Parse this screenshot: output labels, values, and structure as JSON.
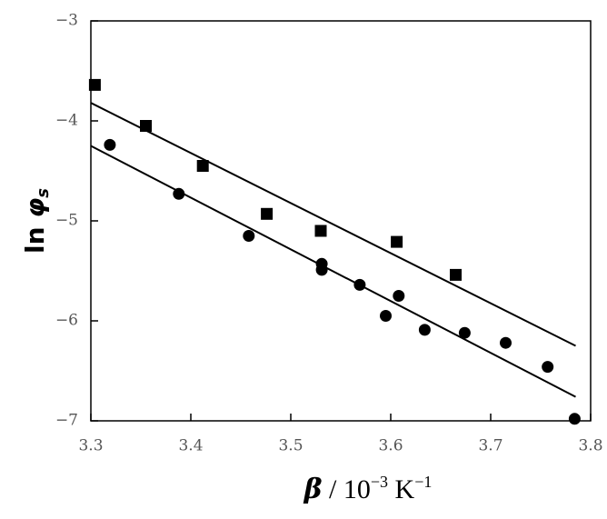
{
  "chart_data": {
    "type": "scatter",
    "ylabel_parts": [
      "ln ",
      "φ",
      "s"
    ],
    "xlabel_parts": [
      "β",
      " / 10",
      "−3",
      " K",
      "−1"
    ],
    "xlim": [
      3.3,
      3.8
    ],
    "xticks": [
      3.3,
      3.4,
      3.5,
      3.6,
      3.7,
      3.8
    ],
    "ylim": [
      -7,
      -3
    ],
    "yticks": [
      {
        "value": -7,
        "label": "−7"
      },
      {
        "value": -6,
        "label": "−6"
      },
      {
        "value": -5,
        "label": "−5"
      },
      {
        "value": -4,
        "label": "−4"
      },
      {
        "value": -3,
        "label": "−3"
      }
    ],
    "series": [
      {
        "marker": "square",
        "color": "#000000",
        "x": [
          3.304,
          3.355,
          3.412,
          3.476,
          3.53,
          3.606,
          3.665
        ],
        "values": [
          -3.64,
          -4.05,
          -4.45,
          -4.93,
          -5.1,
          -5.21,
          -5.54
        ]
      },
      {
        "marker": "circle",
        "color": "#000000",
        "x": [
          3.319,
          3.388,
          3.458,
          3.531,
          3.531,
          3.569,
          3.595,
          3.608,
          3.634,
          3.674,
          3.715,
          3.757,
          3.784
        ],
        "values": [
          -4.24,
          -4.73,
          -5.15,
          -5.43,
          -5.49,
          -5.64,
          -5.95,
          -5.75,
          -6.09,
          -6.12,
          -6.22,
          -6.46,
          -6.98
        ]
      }
    ],
    "lines": [
      {
        "color": "#000000",
        "x": [
          3.3,
          3.785
        ],
        "values": [
          -3.82,
          -6.25
        ]
      },
      {
        "color": "#000000",
        "x": [
          3.3,
          3.785
        ],
        "values": [
          -4.25,
          -6.76
        ]
      }
    ]
  }
}
